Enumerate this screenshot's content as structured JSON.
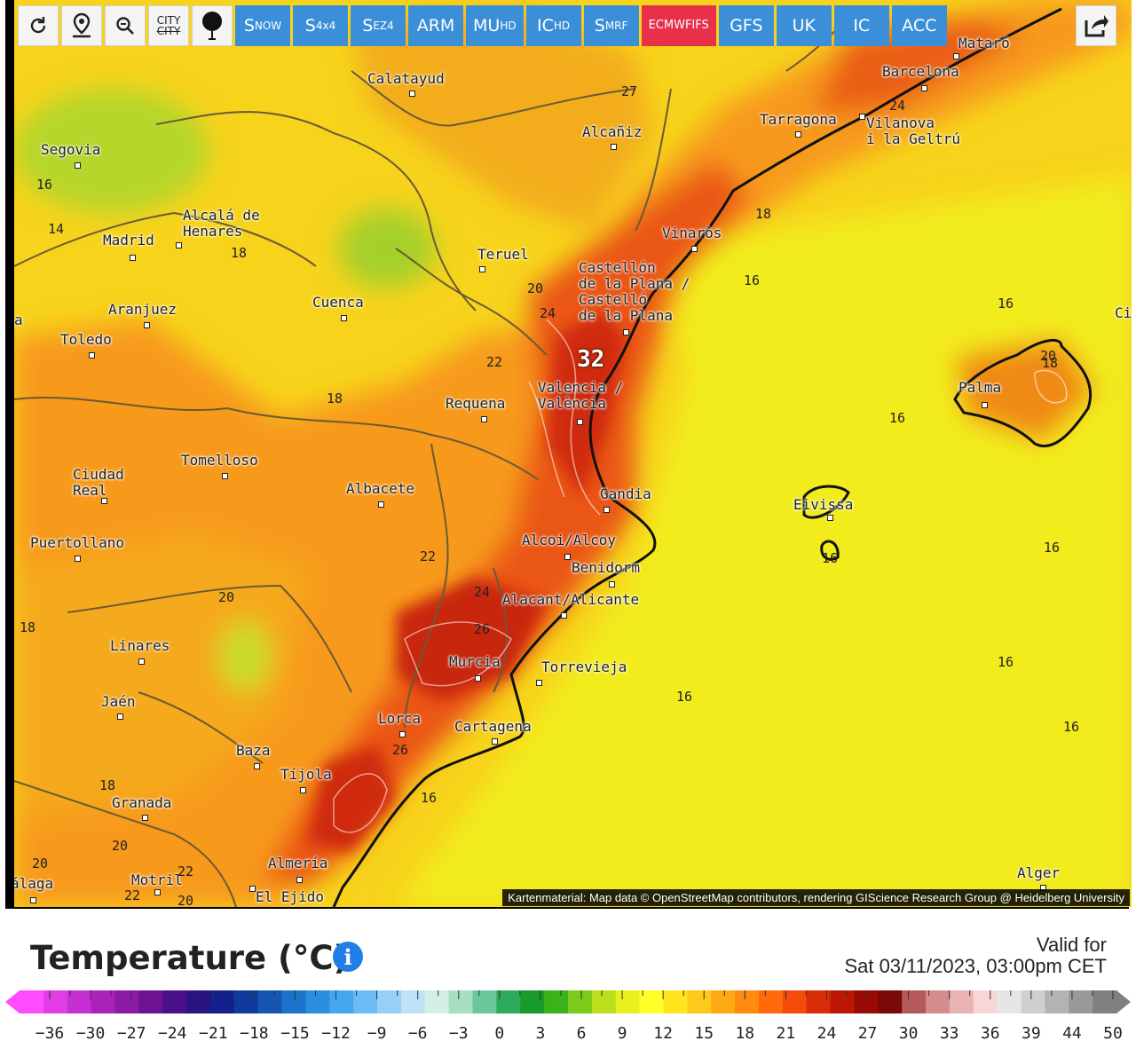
{
  "toolbar": {
    "icons": [
      "refresh-icon",
      "location-pin-icon",
      "zoom-out-icon",
      "city-toggle-icon",
      "balloon-icon"
    ],
    "city_toggle_top": "CITY",
    "city_toggle_bottom": "CITY",
    "models": [
      {
        "main": "S",
        "sub": "NOW",
        "rest": ""
      },
      {
        "main": "S",
        "sub": "4x4",
        "rest": ""
      },
      {
        "main": "S",
        "sub": "EZ4",
        "rest": ""
      },
      {
        "main": "ARM",
        "sub": "",
        "rest": ""
      },
      {
        "main": "MU",
        "sub": "HD",
        "rest": ""
      },
      {
        "main": "IC",
        "sub": "HD",
        "rest": ""
      },
      {
        "main": "S",
        "sub": "MRF",
        "rest": ""
      },
      {
        "main": "ECMWF",
        "sub": "",
        "rest": "IFS"
      },
      {
        "main": "GFS",
        "sub": "",
        "rest": ""
      },
      {
        "main": "UK",
        "sub": "",
        "rest": ""
      },
      {
        "main": "IC",
        "sub": "",
        "rest": ""
      },
      {
        "main": "ACC",
        "sub": "",
        "rest": ""
      }
    ],
    "active_model": "ECMWF IFS",
    "share_icon": "share-icon"
  },
  "map": {
    "cities": [
      {
        "name": "Calatayud"
      },
      {
        "name": "Barcelona"
      },
      {
        "name": "Mataró"
      },
      {
        "name": "Tarragona"
      },
      {
        "name": "Vilanova\ni la Geltrú"
      },
      {
        "name": "Alcañiz"
      },
      {
        "name": "Segovia"
      },
      {
        "name": "Madrid"
      },
      {
        "name": "Alcalá de\nHenares"
      },
      {
        "name": "Teruel"
      },
      {
        "name": "Vinaròs"
      },
      {
        "name": "Castellón\nde la Plana /\nCastelló\nde la Plana"
      },
      {
        "name": "Cuenca"
      },
      {
        "name": "Aranjuez"
      },
      {
        "name": "Toledo"
      },
      {
        "name": "Requena"
      },
      {
        "name": "Valencia /\nValència"
      },
      {
        "name": "Palma"
      },
      {
        "name": "Tomelloso"
      },
      {
        "name": "Ciudad\nReal"
      },
      {
        "name": "Albacete"
      },
      {
        "name": "Gandia"
      },
      {
        "name": "Eivissa"
      },
      {
        "name": "Puertollano"
      },
      {
        "name": "Alcoi/Alcoy"
      },
      {
        "name": "Benidorm"
      },
      {
        "name": "Alacant/Alicante"
      },
      {
        "name": "Linares"
      },
      {
        "name": "Murcia"
      },
      {
        "name": "Torrevieja"
      },
      {
        "name": "Jaén"
      },
      {
        "name": "Lorca"
      },
      {
        "name": "Cartagena"
      },
      {
        "name": "Baza"
      },
      {
        "name": "Tíjola"
      },
      {
        "name": "Granada"
      },
      {
        "name": "Almería"
      },
      {
        "name": "Motril"
      },
      {
        "name": "El Ejido"
      },
      {
        "name": "álaga"
      },
      {
        "name": "Alger"
      },
      {
        "name": "Ciu"
      },
      {
        "name": "a"
      }
    ],
    "isolines": [
      "27",
      "24",
      "18",
      "16",
      "14",
      "18",
      "20",
      "24",
      "16",
      "16",
      "22",
      "32",
      "18",
      "16",
      "16",
      "22",
      "24",
      "26",
      "16",
      "18",
      "20",
      "26",
      "16",
      "16",
      "16",
      "18",
      "20",
      "20",
      "22",
      "22",
      "20",
      "18",
      "16",
      "20"
    ],
    "max_value": "32",
    "attribution": "Kartenmaterial: Map data © OpenStreetMap contributors, rendering GIScience Research Group @ Heidelberg University"
  },
  "legend": {
    "title": "Temperature (°C)",
    "info_icon": "info-icon",
    "valid_label": "Valid for",
    "valid_date": "Sat 03/11/2023, 03:00pm CET",
    "scale_labels": [
      "-36",
      "-30",
      "-27",
      "-24",
      "-21",
      "-18",
      "-15",
      "-12",
      "-9",
      "-6",
      "-3",
      "0",
      "3",
      "6",
      "9",
      "12",
      "15",
      "18",
      "21",
      "24",
      "27",
      "30",
      "33",
      "36",
      "39",
      "44",
      "50"
    ],
    "scale_colors": [
      "#ff4cff",
      "#e13ee8",
      "#c630d2",
      "#a923bb",
      "#8c1aa5",
      "#6c1293",
      "#4a1089",
      "#2a1482",
      "#14208c",
      "#0f3b9d",
      "#1556b3",
      "#1a72cb",
      "#2a8de0",
      "#45a6ef",
      "#6bbcf6",
      "#96d0f8",
      "#c0e2f6",
      "#d4efe6",
      "#a6dfc2",
      "#6bc89a",
      "#2dab5c",
      "#1a9a2a",
      "#3ab21a",
      "#7ccb1a",
      "#b9e01a",
      "#eaf020",
      "#ffff2a",
      "#ffe41f",
      "#ffc91a",
      "#ffaa14",
      "#ff8a10",
      "#ff6a0c",
      "#f44a0a",
      "#d92c08",
      "#bd1606",
      "#990a05",
      "#7a0806",
      "#b55a5a",
      "#d68c8c",
      "#eab3b3",
      "#f7d6d6",
      "#e6e6e6",
      "#cfcfcf",
      "#b3b3b3",
      "#999999",
      "#808080"
    ]
  }
}
